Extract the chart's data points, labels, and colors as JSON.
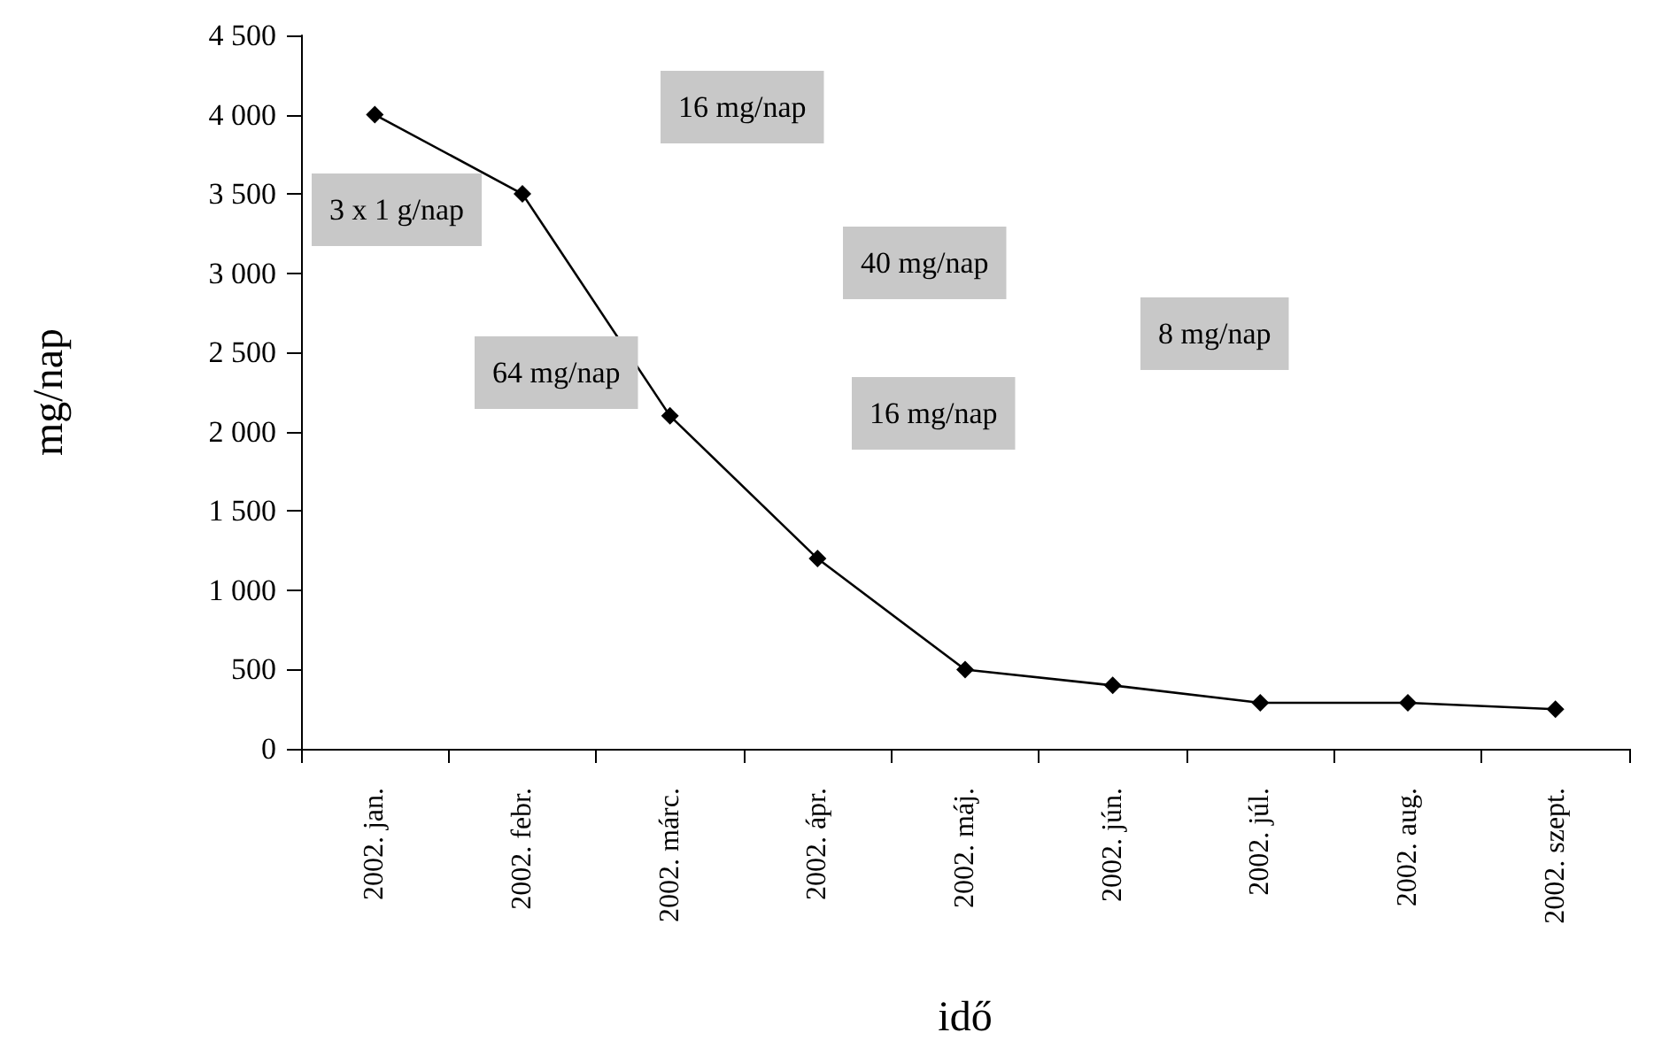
{
  "chart_data": {
    "type": "line",
    "xlabel": "idő",
    "ylabel": "mg/nap",
    "categories": [
      "2002. jan.",
      "2002. febr.",
      "2002. márc.",
      "2002. ápr.",
      "2002. máj.",
      "2002. jún.",
      "2002. júl.",
      "2002. aug.",
      "2002. szept."
    ],
    "series": [
      {
        "color": "#000000",
        "values": [
          4000,
          3500,
          2100,
          1200,
          500,
          400,
          290,
          290,
          250
        ]
      }
    ],
    "ylim": [
      0,
      4500
    ],
    "yticks": [
      {
        "value": 0,
        "label": "0"
      },
      {
        "value": 500,
        "label": "500"
      },
      {
        "value": 1000,
        "label": "1 000"
      },
      {
        "value": 1500,
        "label": "1 500"
      },
      {
        "value": 2000,
        "label": "2 000"
      },
      {
        "value": 2500,
        "label": "2 500"
      },
      {
        "value": 3000,
        "label": "3 000"
      },
      {
        "value": 3500,
        "label": "3 500"
      },
      {
        "value": 4000,
        "label": "4 000"
      },
      {
        "value": 4500,
        "label": "4 500"
      }
    ],
    "marker": "diamond",
    "line_style": "solid",
    "grid": false,
    "annotations": [
      "16 mg/nap",
      "3 x 1 g/nap",
      "40 mg/nap",
      "8 mg/nap",
      "64 mg/nap",
      "16 mg/nap"
    ]
  }
}
